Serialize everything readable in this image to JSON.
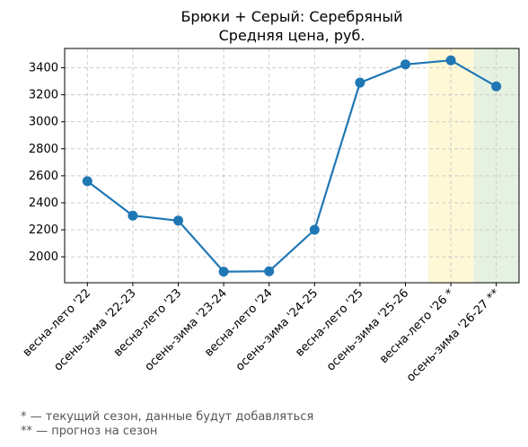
{
  "chart_data": {
    "type": "line",
    "title": "Брюки + Серый: Серебряный",
    "subtitle": "Средняя цена, руб.",
    "xlabel": "",
    "ylabel": "",
    "categories": [
      "весна-лето '22",
      "осень-зима '22-23",
      "весна-лето '23",
      "осень-зима '23-24",
      "весна-лето '24",
      "осень-зима '24-25",
      "весна-лето '25",
      "осень-зима '25-26",
      "весна-лето '26 *",
      "осень-зима '26-27 **"
    ],
    "series": [
      {
        "values": [
          2560,
          2305,
          2268,
          1890,
          1893,
          2200,
          3290,
          3425,
          3455,
          3262
        ],
        "color": "#1f77b4"
      }
    ],
    "ylim": [
      1808,
      3543
    ],
    "yticks": [
      2000,
      2200,
      2400,
      2600,
      2800,
      3000,
      3200,
      3400
    ],
    "grid": true,
    "highlights": [
      {
        "from": 7.5,
        "to": 8.5,
        "color": "#fff8d6"
      },
      {
        "from": 8.5,
        "to": 9.5,
        "color": "#e6f2e1"
      }
    ]
  },
  "footnotes": {
    "current": "* — текущий сезон, данные будут добавляться",
    "forecast": "** — прогноз на сезон"
  }
}
